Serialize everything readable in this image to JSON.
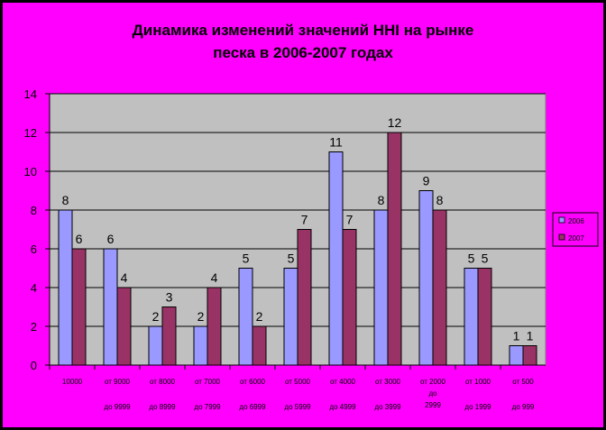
{
  "chart_data": {
    "type": "bar",
    "title_lines": [
      "Динамика изменений значений HHI на рынке",
      "песка в 2006-2007 годах"
    ],
    "categories": [
      [
        "10000"
      ],
      [
        "от 9000",
        "до 9999"
      ],
      [
        "от 8000",
        "до 8999"
      ],
      [
        "от 7000",
        "до 7999"
      ],
      [
        "от 6000",
        "до 6999"
      ],
      [
        "от 5000",
        "до 5999"
      ],
      [
        "от 4000",
        "до 4999"
      ],
      [
        "от 3000",
        "до 3999"
      ],
      [
        "от 2000",
        "до",
        "2999"
      ],
      [
        "от 1000",
        "до 1999"
      ],
      [
        "от 500",
        "до 999"
      ]
    ],
    "series": [
      {
        "name": "2006",
        "values": [
          8,
          6,
          2,
          2,
          5,
          5,
          11,
          8,
          9,
          5,
          1
        ],
        "color": "#9999ff"
      },
      {
        "name": "2007",
        "values": [
          6,
          4,
          3,
          4,
          2,
          7,
          7,
          12,
          8,
          5,
          1
        ],
        "color": "#993366"
      }
    ],
    "ylim": [
      0,
      14
    ],
    "yticks": [
      0,
      2,
      4,
      6,
      8,
      10,
      12,
      14
    ],
    "grid": true,
    "legend_position": "right",
    "colors": {
      "background": "#ff00ff",
      "plot_area": "#c0c0c0",
      "border": "#000000"
    }
  }
}
